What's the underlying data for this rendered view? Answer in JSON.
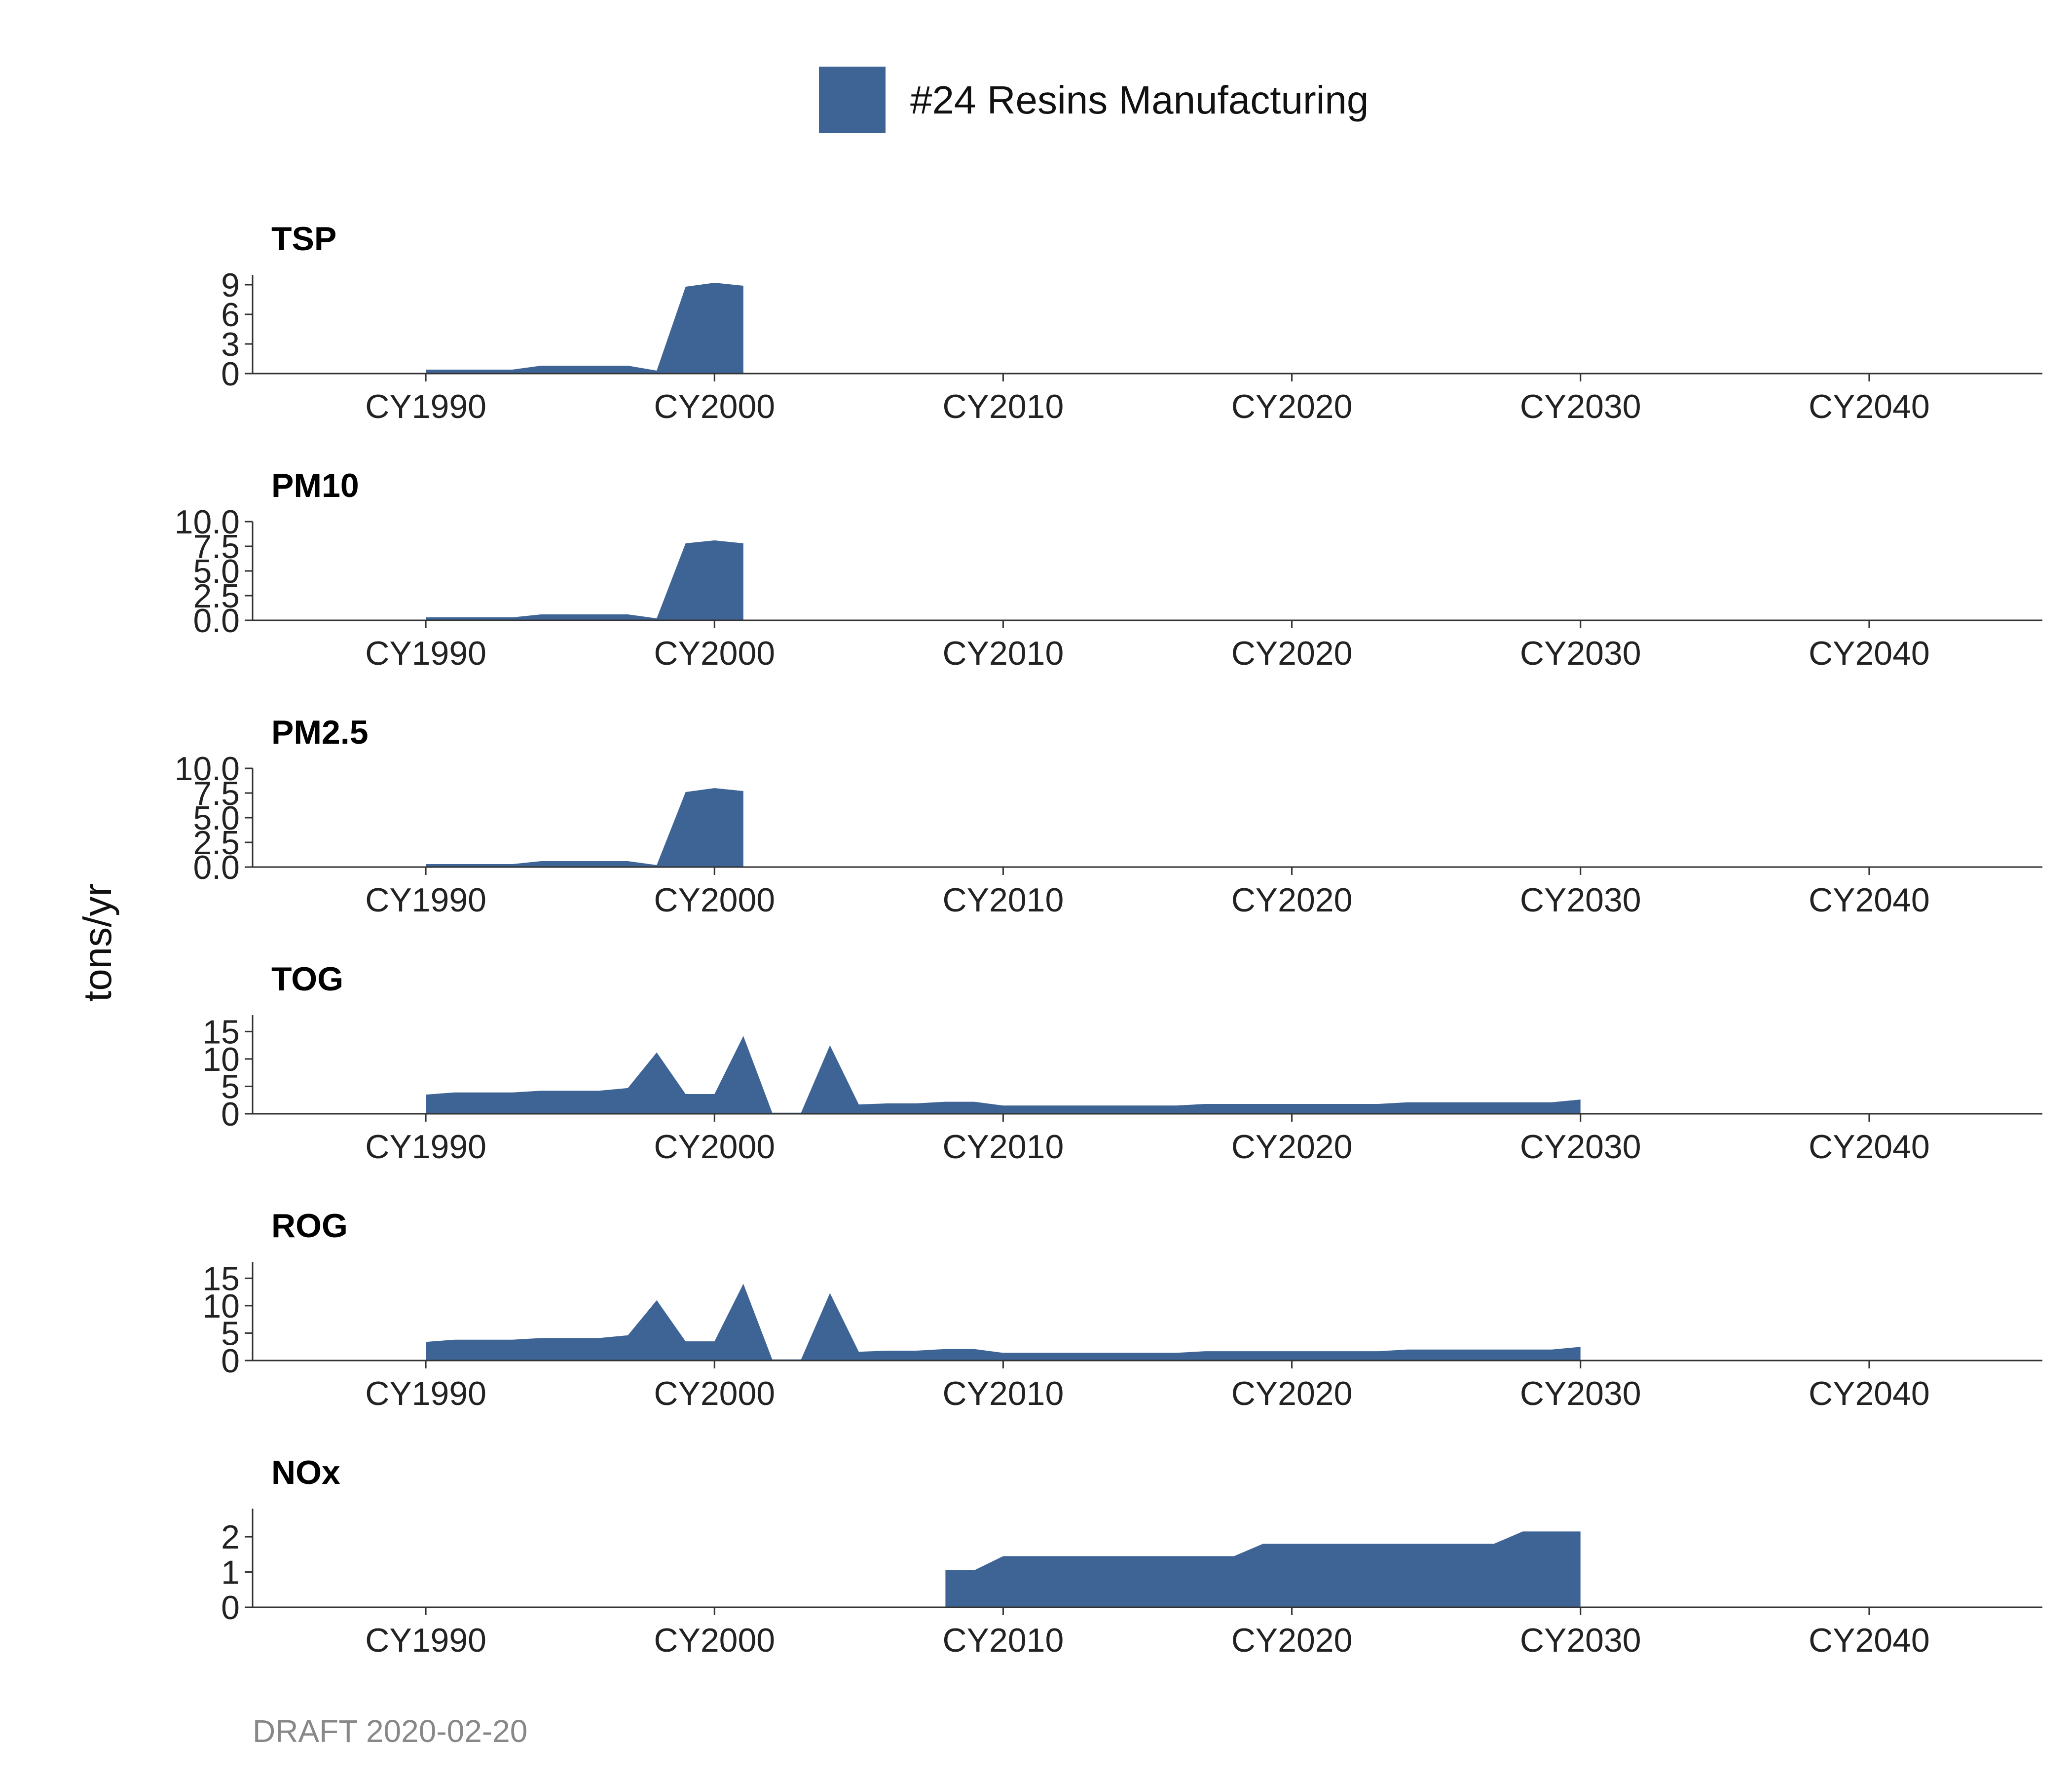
{
  "chart_data": {
    "type": "area",
    "title": "",
    "legend": {
      "position": "top-center",
      "entries": [
        {
          "label": "#24 Resins Manufacturing",
          "color": "#3e6496"
        }
      ]
    },
    "ylabel": "tons/yr",
    "xlabel": "",
    "x_ticks": [
      "CY1990",
      "CY2000",
      "CY2010",
      "CY2020",
      "CY2030",
      "CY2040"
    ],
    "x_tick_years": [
      1990,
      2000,
      2010,
      2020,
      2030,
      2040
    ],
    "x_range": [
      1984,
      2046
    ],
    "footer": "DRAFT 2020-02-20",
    "panels": [
      {
        "name": "TSP",
        "ylim": [
          0,
          10
        ],
        "yticks": [
          0,
          3,
          6,
          9
        ],
        "yticklabels": [
          "0",
          "3",
          "6",
          "9"
        ],
        "segments": [
          {
            "x": [
              1990,
              1991,
              1992,
              1993,
              1994,
              1995,
              1996,
              1997,
              1998,
              1999,
              2000,
              2001
            ],
            "y": [
              0.4,
              0.4,
              0.4,
              0.4,
              0.8,
              0.8,
              0.8,
              0.8,
              0.3,
              8.8,
              9.2,
              8.9
            ]
          }
        ]
      },
      {
        "name": "PM10",
        "ylim": [
          0,
          10
        ],
        "yticks": [
          0,
          2.5,
          5,
          7.5,
          10
        ],
        "yticklabels": [
          "0.0",
          "2.5",
          "5.0",
          "7.5",
          "10.0"
        ],
        "segments": [
          {
            "x": [
              1990,
              1991,
              1992,
              1993,
              1994,
              1995,
              1996,
              1997,
              1998,
              1999,
              2000,
              2001
            ],
            "y": [
              0.3,
              0.3,
              0.3,
              0.3,
              0.6,
              0.6,
              0.6,
              0.6,
              0.2,
              7.8,
              8.1,
              7.8
            ]
          }
        ]
      },
      {
        "name": "PM2.5",
        "ylim": [
          0,
          10
        ],
        "yticks": [
          0,
          2.5,
          5,
          7.5,
          10
        ],
        "yticklabels": [
          "0.0",
          "2.5",
          "5.0",
          "7.5",
          "10.0"
        ],
        "segments": [
          {
            "x": [
              1990,
              1991,
              1992,
              1993,
              1994,
              1995,
              1996,
              1997,
              1998,
              1999,
              2000,
              2001
            ],
            "y": [
              0.3,
              0.3,
              0.3,
              0.3,
              0.6,
              0.6,
              0.6,
              0.6,
              0.2,
              7.6,
              8.0,
              7.7
            ]
          }
        ]
      },
      {
        "name": "TOG",
        "ylim": [
          0,
          18
        ],
        "yticks": [
          0,
          5,
          10,
          15
        ],
        "yticklabels": [
          "0",
          "5",
          "10",
          "15"
        ],
        "segments": [
          {
            "x": [
              1990,
              1991,
              1992,
              1993,
              1994,
              1995,
              1996,
              1997,
              1998,
              1999,
              2000,
              2001,
              2002,
              2003,
              2004,
              2005,
              2006,
              2007,
              2008,
              2009,
              2010,
              2011,
              2012,
              2013,
              2014,
              2015,
              2016,
              2017,
              2018,
              2019,
              2020,
              2021,
              2022,
              2023,
              2024,
              2025,
              2026,
              2027,
              2028,
              2029,
              2030
            ],
            "y": [
              3.5,
              3.9,
              3.9,
              3.9,
              4.2,
              4.2,
              4.2,
              4.7,
              11.2,
              3.6,
              3.6,
              14.2,
              0.2,
              0.2,
              12.5,
              1.7,
              1.9,
              1.9,
              2.2,
              2.2,
              1.5,
              1.5,
              1.5,
              1.5,
              1.5,
              1.5,
              1.5,
              1.8,
              1.8,
              1.8,
              1.8,
              1.8,
              1.8,
              1.8,
              2.1,
              2.1,
              2.1,
              2.1,
              2.1,
              2.1,
              2.6
            ]
          }
        ]
      },
      {
        "name": "ROG",
        "ylim": [
          0,
          18
        ],
        "yticks": [
          0,
          5,
          10,
          15
        ],
        "yticklabels": [
          "0",
          "5",
          "10",
          "15"
        ],
        "segments": [
          {
            "x": [
              1990,
              1991,
              1992,
              1993,
              1994,
              1995,
              1996,
              1997,
              1998,
              1999,
              2000,
              2001,
              2002,
              2003,
              2004,
              2005,
              2006,
              2007,
              2008,
              2009,
              2010,
              2011,
              2012,
              2013,
              2014,
              2015,
              2016,
              2017,
              2018,
              2019,
              2020,
              2021,
              2022,
              2023,
              2024,
              2025,
              2026,
              2027,
              2028,
              2029,
              2030
            ],
            "y": [
              3.4,
              3.8,
              3.8,
              3.8,
              4.1,
              4.1,
              4.1,
              4.6,
              11.0,
              3.5,
              3.5,
              14.0,
              0.2,
              0.2,
              12.3,
              1.6,
              1.8,
              1.8,
              2.1,
              2.1,
              1.4,
              1.4,
              1.4,
              1.4,
              1.4,
              1.4,
              1.4,
              1.7,
              1.7,
              1.7,
              1.7,
              1.7,
              1.7,
              1.7,
              2.0,
              2.0,
              2.0,
              2.0,
              2.0,
              2.0,
              2.5
            ]
          }
        ]
      },
      {
        "name": "NOx",
        "ylim": [
          0,
          2.8
        ],
        "yticks": [
          0,
          1,
          2
        ],
        "yticklabels": [
          "0",
          "1",
          "2"
        ],
        "segments": [
          {
            "x": [
              2008,
              2009,
              2010,
              2011,
              2012,
              2013,
              2014,
              2015,
              2016,
              2017,
              2018,
              2019,
              2020,
              2021,
              2022,
              2023,
              2024,
              2025,
              2026,
              2027,
              2028,
              2029,
              2030
            ],
            "y": [
              1.05,
              1.05,
              1.45,
              1.45,
              1.45,
              1.45,
              1.45,
              1.45,
              1.45,
              1.45,
              1.45,
              1.8,
              1.8,
              1.8,
              1.8,
              1.8,
              1.8,
              1.8,
              1.8,
              1.8,
              2.15,
              2.15,
              2.15
            ]
          }
        ]
      }
    ]
  }
}
